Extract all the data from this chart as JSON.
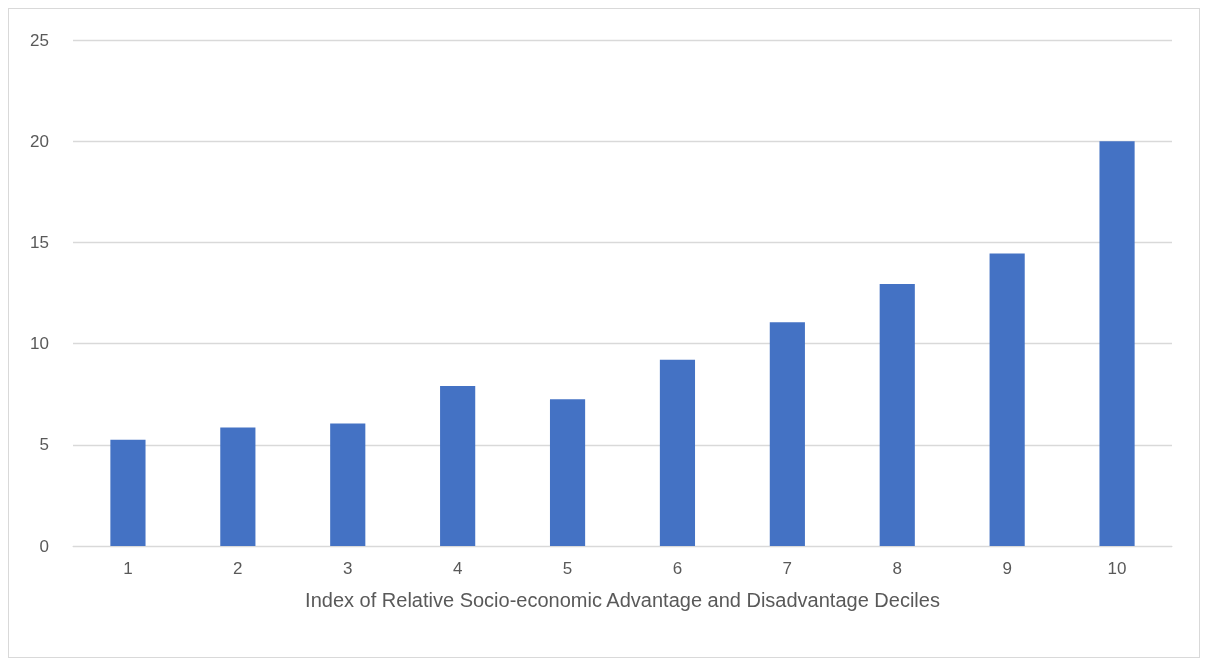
{
  "chart_data": {
    "type": "bar",
    "xlabel": "Index of Relative Socio-economic Advantage and Disadvantage Deciles",
    "categories": [
      "1",
      "2",
      "3",
      "4",
      "5",
      "6",
      "7",
      "8",
      "9",
      "10"
    ],
    "values": [
      5.25,
      5.85,
      6.05,
      7.9,
      7.25,
      9.2,
      11.05,
      12.95,
      14.45,
      20.0
    ],
    "color": "#4472c4",
    "ylim": [
      0,
      25
    ],
    "yticks": [
      0,
      5,
      10,
      15,
      20,
      25
    ],
    "grid": "y"
  }
}
